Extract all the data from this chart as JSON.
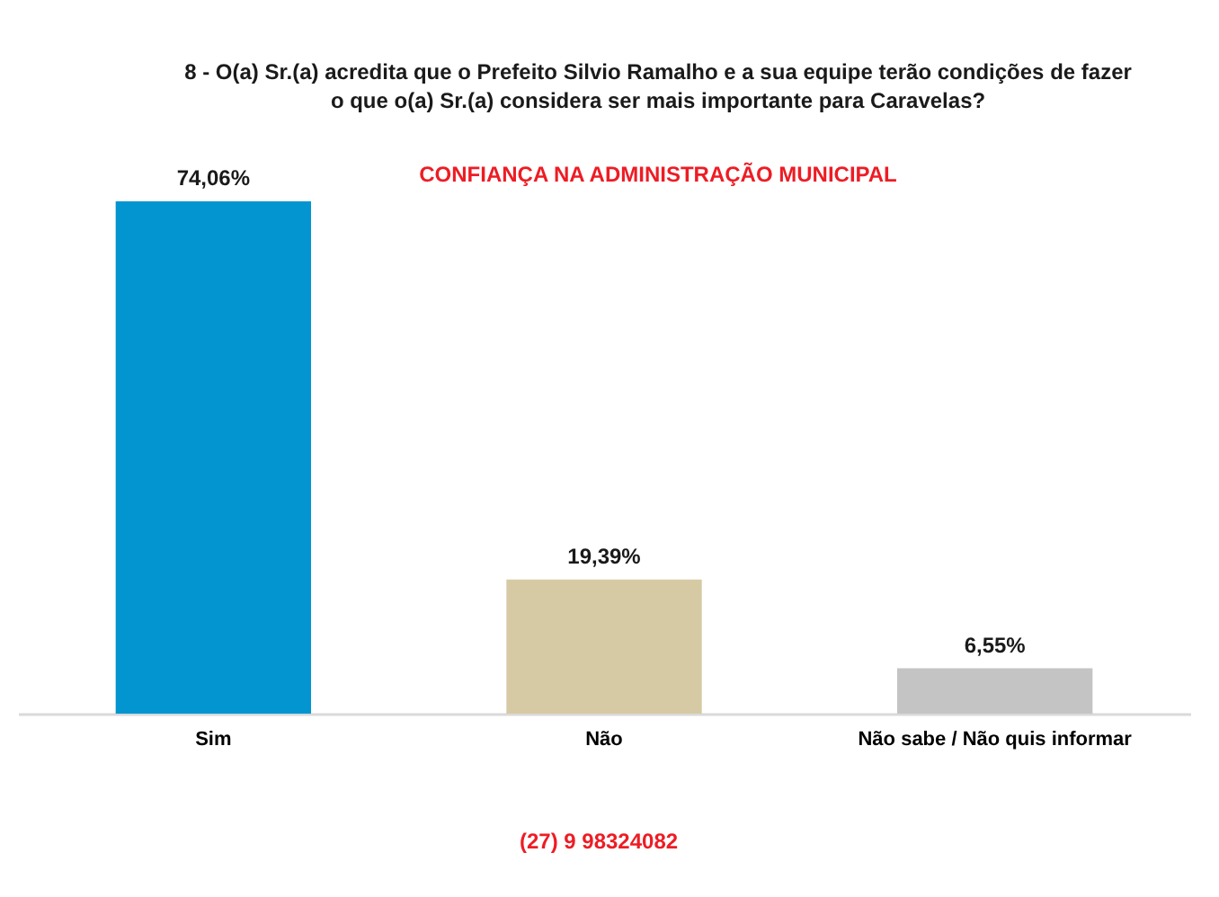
{
  "chart_data": {
    "type": "bar",
    "title": "8 - O(a) Sr.(a) acredita que o Prefeito Silvio Ramalho e a sua equipe terão condições de fazer\no que o(a) Sr.(a) considera ser mais importante para Caravelas?",
    "subtitle": "CONFIANÇA NA ADMINISTRAÇÃO MUNICIPAL",
    "categories": [
      "Sim",
      "Não",
      "Não sabe / Não quis informar"
    ],
    "values": [
      74.06,
      19.39,
      6.55
    ],
    "colors": [
      "#0395d0",
      "#d6caa4",
      "#c4c4c4"
    ],
    "value_labels": [
      "74,06%",
      "19,39%",
      "6,55%"
    ],
    "tick_labels": "x",
    "annotations": [
      "(27) 9 98324082"
    ]
  }
}
